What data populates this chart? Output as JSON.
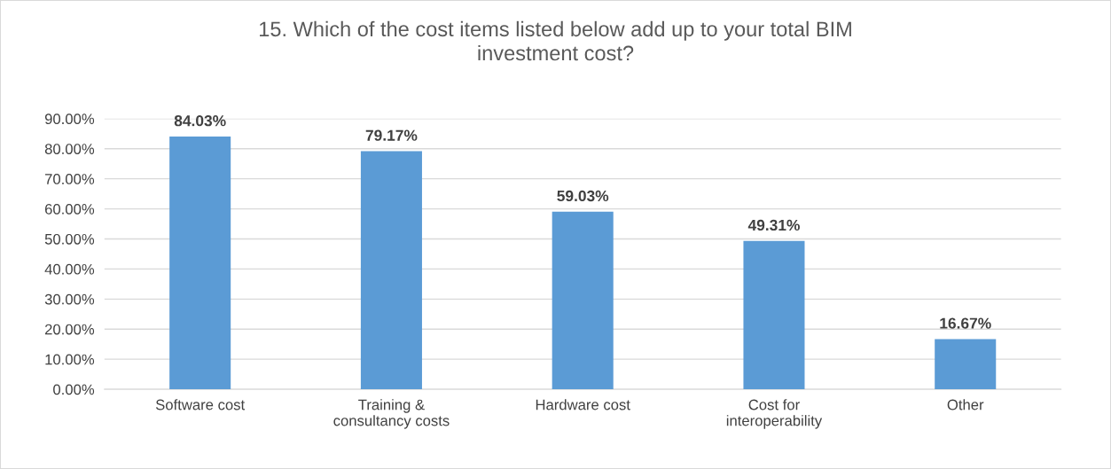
{
  "chart_data": {
    "type": "bar",
    "title": "15. Which of the cost items listed below add up to your total BIM\ninvestment cost?",
    "categories": [
      "Software cost",
      "Training &\nconsultancy costs",
      "Hardware cost",
      "Cost for\ninteroperability",
      "Other"
    ],
    "values": [
      84.03,
      79.17,
      59.03,
      49.31,
      16.67
    ],
    "value_labels": [
      "84.03%",
      "79.17%",
      "59.03%",
      "49.31%",
      "16.67%"
    ],
    "color": "#5b9bd5",
    "ylim": [
      0,
      90
    ],
    "yticks": [
      {
        "value": 0,
        "label": "0.00%"
      },
      {
        "value": 10,
        "label": "10.00%"
      },
      {
        "value": 20,
        "label": "20.00%"
      },
      {
        "value": 30,
        "label": "30.00%"
      },
      {
        "value": 40,
        "label": "40.00%"
      },
      {
        "value": 50,
        "label": "50.00%"
      },
      {
        "value": 60,
        "label": "60.00%"
      },
      {
        "value": 70,
        "label": "70.00%"
      },
      {
        "value": 80,
        "label": "80.00%"
      },
      {
        "value": 90,
        "label": "90.00%"
      }
    ],
    "grid": "y"
  }
}
